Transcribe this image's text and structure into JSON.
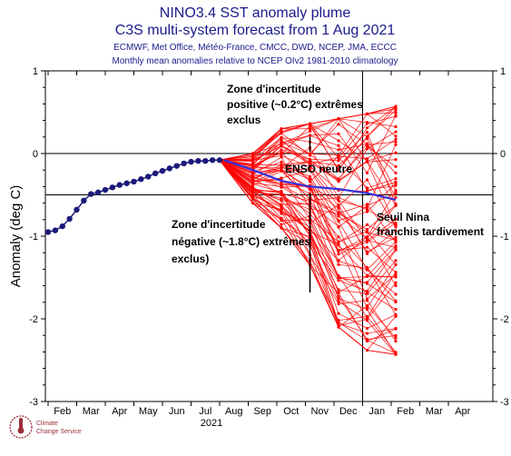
{
  "chart_data": {
    "type": "line",
    "title": "NINO3.4 SST anomaly plume",
    "subtitle": "C3S multi-system forecast from 1 Aug 2021",
    "systems": "ECMWF, Met Office, Météo-France, CMCC, DWD, NCEP, JMA, ECCC",
    "note": "Monthly mean anomalies relative to NCEP OIv2 1981-2010 climatology",
    "ylabel": "Anomaly (deg C)",
    "ylim": [
      -3,
      1
    ],
    "yticks": [
      "1",
      "0",
      "-1",
      "-2",
      "-3"
    ],
    "xticks": [
      "Feb",
      "Mar",
      "Apr",
      "May",
      "Jun",
      "Jul",
      "Aug",
      "Sep",
      "Oct",
      "Nov",
      "Dec",
      "Jan",
      "Feb",
      "Mar",
      "Apr"
    ],
    "year_label": "2021",
    "reference_lines": [
      0,
      -0.5
    ],
    "observed": {
      "color": "#1a1a7a",
      "x": [
        0.0,
        0.25,
        0.5,
        0.75,
        1.0,
        1.25,
        1.5,
        1.75,
        2.0,
        2.25,
        2.5,
        2.75,
        3.0,
        3.25,
        3.5,
        3.75,
        4.0,
        4.25,
        4.5,
        4.75,
        5.0,
        5.25,
        5.5,
        5.75,
        6.0
      ],
      "y": [
        -0.95,
        -0.93,
        -0.88,
        -0.79,
        -0.68,
        -0.57,
        -0.49,
        -0.47,
        -0.44,
        -0.41,
        -0.38,
        -0.36,
        -0.34,
        -0.31,
        -0.28,
        -0.24,
        -0.21,
        -0.18,
        -0.15,
        -0.12,
        -0.1,
        -0.09,
        -0.09,
        -0.08,
        -0.08
      ]
    },
    "ensemble_mean": {
      "color": "#3333dd",
      "x": [
        6.0,
        7,
        8,
        9,
        10,
        11,
        12
      ],
      "y": [
        -0.08,
        -0.2,
        -0.33,
        -0.4,
        -0.43,
        -0.48,
        -0.56
      ]
    },
    "plume_range": {
      "color": "#ff0000",
      "months": [
        7,
        8,
        9,
        10,
        11,
        12
      ],
      "max": [
        0.0,
        0.3,
        0.36,
        0.42,
        0.48,
        0.57
      ],
      "min": [
        -0.6,
        -0.9,
        -1.35,
        -2.1,
        -2.38,
        -2.43
      ]
    },
    "annotations": {
      "positive": [
        "Zone d'incertitude",
        "positive (~0.2°C) extrêmes",
        "exclus"
      ],
      "neutral": "ENSO neutre",
      "negative": [
        "Zone d'incertitude",
        "négative (~1.8°C) extrêmes",
        "exclus)"
      ],
      "nina": [
        "Seuil Nina",
        "franchis tardivement"
      ]
    },
    "logo": [
      "Climate",
      "Change Service"
    ]
  }
}
